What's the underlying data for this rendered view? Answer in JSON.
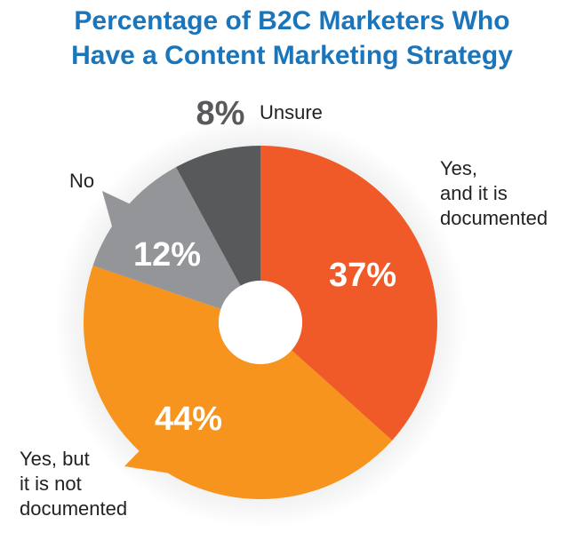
{
  "chart_data": {
    "type": "donut",
    "title": "Percentage of B2C Marketers Who Have a Content Marketing Strategy",
    "categories": [
      "Yes,\nand it is\ndocumented",
      "Yes, but\nit is not\ndocumented",
      "No",
      "Unsure"
    ],
    "values": [
      37,
      44,
      12,
      8
    ],
    "value_labels": [
      "37%",
      "44%",
      "12%",
      "8%"
    ],
    "colors": [
      "#f05a28",
      "#f7941d",
      "#939598",
      "#58595b"
    ]
  }
}
